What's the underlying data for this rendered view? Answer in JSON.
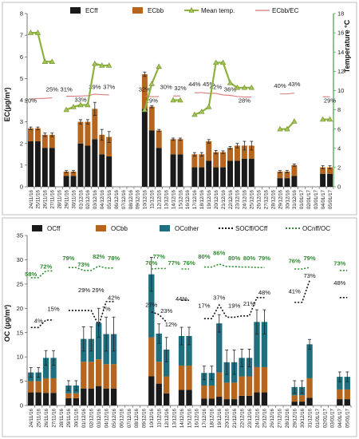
{
  "chart_data": [
    {
      "type": "bar",
      "stacked": true,
      "categories": [
        "24/11/16",
        "25/11/16",
        "26/11/16",
        "27/11/16",
        "28/11/16",
        "29/11/16",
        "30/11/16",
        "01/12/16",
        "02/12/16",
        "03/12/16",
        "04/12/16",
        "05/12/16",
        "06/12/16",
        "07/12/16",
        "08/12/16",
        "09/12/16",
        "10/12/16",
        "11/12/16",
        "12/12/16",
        "13/12/16",
        "14/12/16",
        "15/12/16",
        "16/12/16",
        "17/12/16",
        "18/12/16",
        "19/12/16",
        "20/12/16",
        "21/12/16",
        "22/12/16",
        "23/12/16",
        "24/12/16",
        "25/12/16",
        "26/12/16",
        "27/12/16",
        "28/12/16",
        "29/12/16",
        "30/12/16",
        "31/12/16",
        "01/01/17",
        "02/01/17",
        "03/01/17",
        "04/01/17",
        "05/01/17"
      ],
      "series": [
        {
          "name": "ECff",
          "color": "#1a1a1a",
          "values": [
            2.1,
            2.1,
            1.8,
            1.8,
            null,
            0.5,
            0.5,
            2.0,
            1.9,
            2.2,
            1.5,
            1.4,
            null,
            null,
            null,
            null,
            3.6,
            2.6,
            1.8,
            null,
            1.5,
            1.5,
            null,
            0.9,
            0.9,
            1.2,
            0.9,
            0.9,
            1.2,
            1.2,
            1.3,
            1.3,
            null,
            null,
            null,
            0.4,
            0.4,
            0.5,
            null,
            null,
            null,
            0.6,
            0.6
          ]
        },
        {
          "name": "ECbb",
          "color": "#b5651d",
          "values": [
            0.6,
            0.6,
            0.6,
            0.6,
            null,
            0.2,
            0.2,
            1.0,
            1.1,
            1.4,
            0.9,
            0.9,
            null,
            null,
            null,
            null,
            1.6,
            1.1,
            0.8,
            null,
            0.7,
            0.7,
            null,
            0.6,
            0.6,
            0.9,
            0.7,
            0.7,
            0.6,
            0.7,
            0.6,
            0.6,
            null,
            null,
            null,
            0.3,
            0.3,
            0.5,
            null,
            null,
            null,
            0.3,
            0.3
          ]
        },
        {
          "name": "Mean temp.",
          "color": "#8cb33d",
          "axis": "right",
          "values": [
            16,
            16,
            13,
            13,
            null,
            8,
            8.3,
            8.5,
            8.5,
            12.8,
            12.6,
            12.6,
            null,
            null,
            null,
            null,
            8,
            10.7,
            12.5,
            null,
            9,
            9,
            null,
            7.5,
            7.8,
            8.3,
            12.9,
            12.9,
            10.8,
            10.3,
            10.3,
            10.3,
            null,
            null,
            null,
            6,
            6,
            6.8,
            null,
            null,
            null,
            7,
            7
          ]
        }
      ],
      "ecbb_ec_line": {
        "name": "ECbb/EC",
        "color": "#d9797a",
        "segments": [
          [
            0,
            3
          ],
          [
            5,
            11
          ],
          [
            16,
            18
          ],
          [
            20,
            21
          ],
          [
            23,
            31
          ],
          [
            35,
            37
          ],
          [
            41,
            42
          ]
        ],
        "values": [
          20,
          22,
          23,
          25,
          null,
          31,
          31,
          32,
          33,
          39,
          37,
          36,
          null,
          null,
          null,
          null,
          32,
          29,
          30,
          null,
          32,
          32,
          null,
          44,
          45,
          42,
          42,
          36,
          34,
          30,
          28,
          28,
          null,
          null,
          null,
          40,
          40,
          43,
          null,
          null,
          null,
          29,
          29
        ]
      },
      "ecbb_ec_labels": [
        [
          "20%",
          0,
          4.25
        ],
        [
          "25%",
          3,
          4.36
        ],
        [
          "31%",
          5,
          4.36
        ],
        [
          "33%",
          7,
          4.3
        ],
        [
          "39%",
          9,
          4.48
        ],
        [
          "37%",
          11,
          4.48
        ],
        [
          "32%",
          16,
          4.36
        ],
        [
          "29%",
          17,
          4.25
        ],
        [
          "30%",
          19,
          4.48
        ],
        [
          "32%",
          21,
          4.42
        ],
        [
          "44%",
          23,
          4.6
        ],
        [
          "45%",
          25,
          4.6
        ],
        [
          "42%",
          26,
          4.48
        ],
        [
          "36%",
          28,
          4.36
        ],
        [
          "28%",
          30,
          4.25
        ],
        [
          "40%",
          35,
          4.54
        ],
        [
          "43%",
          37,
          4.6
        ],
        [
          "29%",
          42,
          4.25
        ]
      ],
      "y_ticks": [
        0,
        1,
        2,
        3,
        4,
        5,
        6,
        7,
        8
      ],
      "ylim": [
        0,
        8
      ],
      "y2_ticks": [
        0,
        2,
        4,
        6,
        8,
        10,
        12,
        14,
        16,
        18
      ],
      "y2lim": [
        0,
        18
      ],
      "ylabel": "EC(μg/m³)",
      "y2label": "Temperature °C",
      "legend_position": "top",
      "error": [
        0.06,
        0.06,
        0.08,
        0.08,
        null,
        0.05,
        0.05,
        0.1,
        0.1,
        0.3,
        0.25,
        0.25,
        null,
        null,
        null,
        null,
        0.1,
        0.05,
        0.05,
        null,
        0.05,
        0.05,
        null,
        0.08,
        0.08,
        0.08,
        0.08,
        0.06,
        0.06,
        0.1,
        0.2,
        0.2,
        null,
        null,
        null,
        0.05,
        0.05,
        0.05,
        null,
        null,
        null,
        0.07,
        0.07
      ]
    },
    {
      "type": "bar",
      "stacked": true,
      "categories": [
        "24/11/16",
        "25/11/16",
        "26/11/16",
        "27/11/16",
        "28/11/16",
        "29/11/16",
        "30/11/16",
        "01/12/16",
        "02/12/16",
        "03/12/16",
        "04/12/16",
        "05/12/16",
        "06/12/16",
        "07/12/16",
        "08/12/16",
        "09/12/16",
        "10/12/16",
        "11/12/16",
        "12/12/16",
        "13/12/16",
        "14/12/16",
        "15/12/16",
        "16/12/16",
        "17/12/16",
        "18/12/16",
        "19/12/16",
        "20/12/16",
        "21/12/16",
        "22/12/16",
        "23/12/16",
        "24/12/16",
        "25/12/16",
        "26/12/16",
        "27/12/16",
        "28/12/16",
        "29/12/16",
        "30/12/16",
        "31/12/16",
        "01/01/17",
        "02/01/17",
        "03/01/17",
        "04/01/17",
        "05/01/17"
      ],
      "series": [
        {
          "name": "OCff",
          "color": "#1a1a1a",
          "values": [
            2.7,
            2.7,
            2.6,
            2.6,
            null,
            1.5,
            1.5,
            3.5,
            3.5,
            4.0,
            3.5,
            3.5,
            null,
            null,
            null,
            null,
            6.0,
            4.5,
            2.5,
            null,
            3.2,
            3.2,
            null,
            1.4,
            1.4,
            1.8,
            1.3,
            1.3,
            2.0,
            2.0,
            2.7,
            2.7,
            null,
            null,
            null,
            0.8,
            0.8,
            1.6,
            null,
            null,
            null,
            1.3,
            1.3
          ]
        },
        {
          "name": "OCbb",
          "color": "#b5651d",
          "values": [
            2.3,
            2.3,
            3.0,
            3.0,
            null,
            1.0,
            1.0,
            5.5,
            5.5,
            5.5,
            5.0,
            5.0,
            null,
            null,
            null,
            null,
            8.0,
            4.5,
            3.5,
            null,
            5.0,
            5.0,
            null,
            2.7,
            2.7,
            5.0,
            3.4,
            3.4,
            4.0,
            4.0,
            5.2,
            5.2,
            null,
            null,
            null,
            1.3,
            1.3,
            4.0,
            null,
            null,
            null,
            2.0,
            2.0
          ]
        },
        {
          "name": "OCother",
          "color": "#1f6f7f",
          "values": [
            1.8,
            1.8,
            4.2,
            4.2,
            null,
            1.6,
            1.6,
            4.7,
            4.7,
            7.5,
            6.2,
            6.2,
            null,
            null,
            null,
            null,
            13.0,
            5.8,
            5.5,
            null,
            6.1,
            6.1,
            null,
            2.6,
            2.6,
            10.1,
            4.2,
            4.2,
            3.8,
            3.8,
            9.3,
            9.3,
            null,
            null,
            null,
            1.7,
            1.7,
            7.0,
            null,
            null,
            null,
            2.6,
            2.6
          ]
        }
      ],
      "socff_line": {
        "name": "SOCff/OCff",
        "color": "#111111",
        "segments": [
          [
            0,
            3
          ],
          [
            5,
            11
          ],
          [
            16,
            18
          ],
          [
            20,
            21
          ],
          [
            23,
            31
          ],
          [
            35,
            37
          ],
          [
            41,
            42
          ]
        ],
        "values": [
          4,
          4,
          15,
          15,
          null,
          29,
          29,
          29,
          29,
          7,
          42,
          42,
          null,
          null,
          null,
          null,
          27,
          23,
          12,
          null,
          44,
          44,
          null,
          17,
          17,
          37,
          19,
          19,
          21,
          21,
          48,
          48,
          null,
          null,
          null,
          41,
          41,
          73,
          null,
          null,
          null,
          48,
          48
        ]
      },
      "ocnff_line": {
        "name": "OCnff/OC",
        "color": "#2e8b2e",
        "segments": [
          [
            0,
            3
          ],
          [
            5,
            11
          ],
          [
            16,
            18
          ],
          [
            20,
            21
          ],
          [
            23,
            31
          ],
          [
            35,
            37
          ],
          [
            41,
            42
          ]
        ],
        "values": [
          58,
          58,
          72,
          72,
          null,
          79,
          79,
          73,
          73,
          82,
          78,
          78,
          null,
          null,
          null,
          null,
          76,
          77,
          77,
          null,
          76,
          76,
          null,
          80,
          80,
          86,
          81,
          81,
          80,
          80,
          79,
          79,
          null,
          null,
          null,
          76,
          76,
          79,
          null,
          null,
          null,
          73,
          73
        ]
      },
      "socff_labels": [
        [
          "4%",
          1,
          17
        ],
        [
          "15%",
          3,
          19.5
        ],
        [
          "29% 29%",
          8,
          23.3
        ],
        [
          "7%",
          10,
          19.5
        ],
        [
          "42%",
          11,
          21.8
        ],
        [
          "27%",
          16,
          20.3
        ],
        [
          "23%",
          18,
          19.1
        ],
        [
          "12%",
          18.6,
          16.3
        ],
        [
          "44%",
          20,
          21.5
        ],
        [
          "17%",
          23,
          20.1
        ],
        [
          "37%",
          25,
          21.8
        ],
        [
          "19%",
          27,
          20.1
        ],
        [
          "21%",
          29,
          20.5
        ],
        [
          "48%",
          31,
          22.8
        ],
        [
          "41%",
          35,
          23.1
        ],
        [
          "73%",
          37,
          26.3
        ],
        [
          "48%",
          41,
          24.8
        ]
      ],
      "ocnff_labels": [
        [
          "58%",
          0,
          26.6
        ],
        [
          "72%",
          2,
          28.2
        ],
        [
          "79%",
          5,
          29.9
        ],
        [
          "73%",
          7,
          28.6
        ],
        [
          "82%",
          9,
          30.2
        ],
        [
          "78%",
          11,
          29.9
        ],
        [
          "76%",
          16,
          28.9
        ],
        [
          "77%",
          17,
          30.2
        ],
        [
          "77%",
          19,
          28.9
        ],
        [
          "76%",
          21,
          28.9
        ],
        [
          "80%",
          23,
          30.2
        ],
        [
          "86%",
          25,
          31.0
        ],
        [
          "80%",
          27,
          29.9
        ],
        [
          "80%",
          29,
          29.9
        ],
        [
          "79%",
          31,
          29.9
        ],
        [
          "76%",
          35,
          29.3
        ],
        [
          "79%",
          37,
          29.9
        ],
        [
          "73%",
          41,
          28.8
        ]
      ],
      "y_ticks": [
        0,
        5,
        10,
        15,
        20,
        25,
        30,
        35
      ],
      "ylim": [
        0,
        35
      ],
      "ylabel": "OC (μg/m³)",
      "legend_position": "top",
      "error": [
        1.0,
        1.0,
        1.5,
        1.5,
        null,
        1.0,
        1.0,
        2.5,
        2.5,
        3.0,
        3.5,
        3.5,
        null,
        null,
        null,
        null,
        3.5,
        2.0,
        2.5,
        null,
        1.8,
        1.8,
        null,
        1.4,
        1.4,
        1.8,
        2.5,
        2.5,
        1.8,
        1.8,
        2.5,
        2.5,
        null,
        null,
        null,
        1.3,
        1.3,
        1.0,
        null,
        null,
        null,
        1.0,
        1.0
      ]
    }
  ]
}
